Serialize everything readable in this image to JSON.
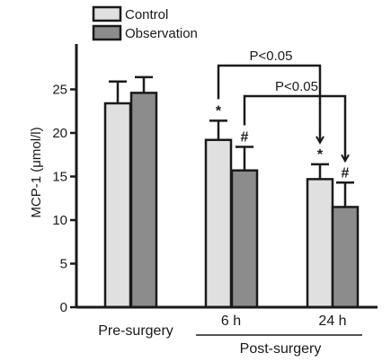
{
  "chart_data": {
    "type": "bar",
    "title": "",
    "xlabel": "",
    "ylabel": "MCP-1 (μmol/l)",
    "ylim": [
      0,
      30
    ],
    "yticks": [
      0,
      5,
      10,
      15,
      20,
      25
    ],
    "categories": [
      "Pre-surgery",
      "6 h",
      "24 h"
    ],
    "category_group": {
      "label": "Post-surgery",
      "members": [
        "6 h",
        "24 h"
      ]
    },
    "series": [
      {
        "name": "Control",
        "color": "#e0e0e0",
        "values": [
          23.4,
          19.2,
          14.7
        ],
        "errors": [
          2.5,
          2.2,
          1.7
        ],
        "markers": [
          "",
          "*",
          "*"
        ]
      },
      {
        "name": "Observation",
        "color": "#8c8c8c",
        "values": [
          24.6,
          15.7,
          11.5
        ],
        "errors": [
          1.8,
          2.7,
          2.8
        ],
        "markers": [
          "",
          "#",
          "#"
        ]
      }
    ],
    "legend": {
      "placement": "top-left"
    },
    "grid": false,
    "annotations": [
      {
        "label": "P<0.05",
        "from_category": "6 h",
        "from_series": "Control",
        "to_category": "24 h",
        "to_series": "Control"
      },
      {
        "label": "P<0.05",
        "from_category": "6 h",
        "from_series": "Observation",
        "to_category": "24 h",
        "to_series": "Observation"
      }
    ]
  }
}
